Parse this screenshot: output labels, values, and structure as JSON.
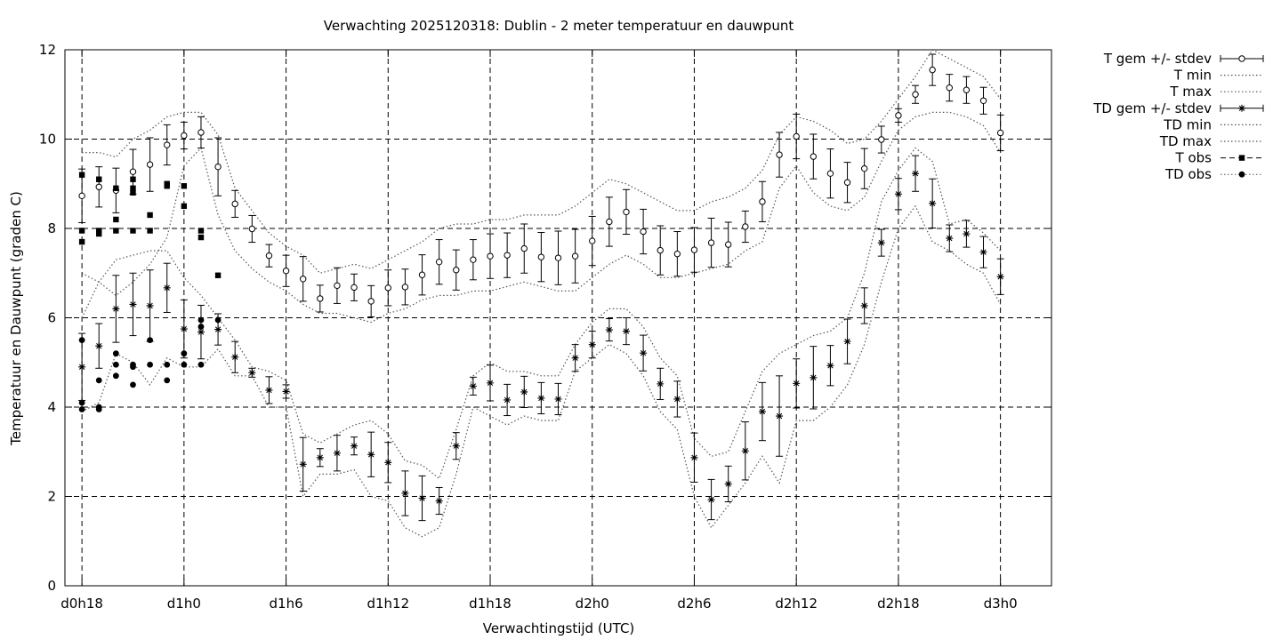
{
  "chart_data": {
    "type": "line",
    "title": "Verwachting 2025120318: Dublin - 2 meter temperatuur en dauwpunt",
    "xlabel": "Verwachtingstijd (UTC)",
    "ylabel": "Temperatuur en Dauwpunt (graden C)",
    "x_unit": "hours since d0h0",
    "xlim": [
      17,
      75
    ],
    "ylim": [
      0,
      12
    ],
    "y_ticks": [
      0,
      2,
      4,
      6,
      8,
      10,
      12
    ],
    "x_ticks": [
      {
        "x": 18,
        "label": "d0h18"
      },
      {
        "x": 24,
        "label": "d1h0"
      },
      {
        "x": 30,
        "label": "d1h6"
      },
      {
        "x": 36,
        "label": "d1h12"
      },
      {
        "x": 42,
        "label": "d1h18"
      },
      {
        "x": 48,
        "label": "d2h0"
      },
      {
        "x": 54,
        "label": "d2h6"
      },
      {
        "x": 60,
        "label": "d2h12"
      },
      {
        "x": 66,
        "label": "d2h18"
      },
      {
        "x": 72,
        "label": "d3h0"
      }
    ],
    "grid": true,
    "legend_position": "right",
    "legend": [
      {
        "key": "t_mean",
        "label": "T gem +/- stdev"
      },
      {
        "key": "t_min",
        "label": "T min"
      },
      {
        "key": "t_max",
        "label": "T max"
      },
      {
        "key": "td_mean",
        "label": "TD gem +/- stdev"
      },
      {
        "key": "td_min",
        "label": "TD min"
      },
      {
        "key": "td_max",
        "label": "TD max"
      },
      {
        "key": "t_obs",
        "label": "T obs"
      },
      {
        "key": "td_obs",
        "label": "TD obs"
      }
    ],
    "x": [
      18,
      19,
      20,
      21,
      22,
      23,
      24,
      25,
      26,
      27,
      28,
      29,
      30,
      31,
      32,
      33,
      34,
      35,
      36,
      37,
      38,
      39,
      40,
      41,
      42,
      43,
      44,
      45,
      46,
      47,
      48,
      49,
      50,
      51,
      52,
      53,
      54,
      55,
      56,
      57,
      58,
      59,
      60,
      61,
      62,
      63,
      64,
      65,
      66,
      67,
      68,
      69,
      70,
      71,
      72
    ],
    "t_mean": [
      8.73,
      8.93,
      8.85,
      9.27,
      9.43,
      9.87,
      10.08,
      10.15,
      9.38,
      8.55,
      7.99,
      7.39,
      7.05,
      6.87,
      6.43,
      6.72,
      6.68,
      6.37,
      6.67,
      6.69,
      6.96,
      7.25,
      7.07,
      7.3,
      7.38,
      7.4,
      7.55,
      7.36,
      7.34,
      7.38,
      7.72,
      8.15,
      8.37,
      7.93,
      7.51,
      7.43,
      7.52,
      7.68,
      7.64,
      8.04,
      8.6,
      9.65,
      10.06,
      9.61,
      9.23,
      9.03,
      9.34,
      9.99,
      10.53,
      11.0,
      11.55,
      11.15,
      11.1,
      10.86,
      10.14
    ],
    "t_sd": [
      0.6,
      0.45,
      0.5,
      0.5,
      0.6,
      0.45,
      0.3,
      0.35,
      0.65,
      0.3,
      0.3,
      0.25,
      0.35,
      0.5,
      0.3,
      0.4,
      0.3,
      0.35,
      0.4,
      0.4,
      0.45,
      0.5,
      0.45,
      0.45,
      0.5,
      0.5,
      0.55,
      0.55,
      0.6,
      0.6,
      0.55,
      0.55,
      0.5,
      0.5,
      0.55,
      0.5,
      0.5,
      0.55,
      0.5,
      0.35,
      0.45,
      0.5,
      0.5,
      0.5,
      0.55,
      0.45,
      0.45,
      0.3,
      0.15,
      0.2,
      0.35,
      0.3,
      0.3,
      0.3,
      0.4
    ],
    "t_min": [
      7.0,
      6.8,
      6.5,
      6.8,
      7.2,
      7.8,
      9.4,
      9.8,
      8.3,
      7.5,
      7.1,
      6.8,
      6.6,
      6.3,
      6.1,
      6.1,
      6.0,
      5.9,
      6.1,
      6.2,
      6.4,
      6.5,
      6.5,
      6.6,
      6.6,
      6.7,
      6.8,
      6.7,
      6.6,
      6.6,
      6.9,
      7.2,
      7.4,
      7.2,
      6.9,
      6.9,
      7.0,
      7.1,
      7.2,
      7.5,
      7.7,
      8.9,
      9.4,
      8.8,
      8.5,
      8.4,
      8.7,
      9.5,
      10.2,
      10.5,
      10.6,
      10.6,
      10.5,
      10.3,
      9.7
    ],
    "t_max": [
      9.7,
      9.7,
      9.6,
      10.0,
      10.2,
      10.5,
      10.6,
      10.6,
      10.1,
      8.9,
      8.4,
      7.9,
      7.6,
      7.4,
      7.0,
      7.1,
      7.2,
      7.1,
      7.3,
      7.5,
      7.7,
      8.0,
      8.1,
      8.1,
      8.2,
      8.2,
      8.3,
      8.3,
      8.3,
      8.5,
      8.8,
      9.1,
      9.0,
      8.8,
      8.6,
      8.4,
      8.4,
      8.6,
      8.7,
      8.9,
      9.3,
      10.1,
      10.5,
      10.4,
      10.2,
      9.9,
      10.0,
      10.4,
      10.9,
      11.4,
      12.0,
      11.8,
      11.6,
      11.4,
      10.9
    ],
    "td_mean": [
      4.9,
      5.37,
      6.2,
      6.3,
      6.27,
      6.67,
      5.75,
      5.68,
      5.74,
      5.12,
      4.77,
      4.38,
      4.35,
      2.72,
      2.87,
      2.97,
      3.13,
      2.94,
      2.76,
      2.07,
      1.96,
      1.9,
      3.13,
      4.47,
      4.54,
      4.16,
      4.34,
      4.2,
      4.18,
      5.1,
      5.4,
      5.73,
      5.7,
      5.21,
      4.52,
      4.18,
      2.87,
      1.93,
      2.28,
      3.02,
      3.9,
      3.8,
      4.53,
      4.66,
      4.93,
      5.47,
      6.27,
      7.68,
      8.77,
      9.23,
      8.56,
      7.78,
      7.88,
      7.47,
      6.92
    ],
    "td_sd": [
      0.75,
      0.5,
      0.75,
      0.7,
      0.8,
      0.55,
      0.65,
      0.6,
      0.35,
      0.35,
      0.1,
      0.3,
      0.15,
      0.6,
      0.2,
      0.4,
      0.2,
      0.5,
      0.45,
      0.5,
      0.5,
      0.3,
      0.3,
      0.2,
      0.4,
      0.35,
      0.35,
      0.35,
      0.35,
      0.3,
      0.3,
      0.25,
      0.3,
      0.4,
      0.35,
      0.4,
      0.55,
      0.45,
      0.4,
      0.65,
      0.65,
      0.9,
      0.55,
      0.7,
      0.45,
      0.5,
      0.4,
      0.3,
      0.35,
      0.4,
      0.55,
      0.3,
      0.3,
      0.35,
      0.4
    ],
    "td_min": [
      3.9,
      4.1,
      5.2,
      5.0,
      4.5,
      5.1,
      4.9,
      4.9,
      5.3,
      4.7,
      4.7,
      4.0,
      4.0,
      2.0,
      2.5,
      2.5,
      2.6,
      2.0,
      1.9,
      1.3,
      1.1,
      1.3,
      2.5,
      4.0,
      3.8,
      3.6,
      3.8,
      3.7,
      3.7,
      4.8,
      5.1,
      5.4,
      5.2,
      4.7,
      3.9,
      3.5,
      2.0,
      1.3,
      1.8,
      2.3,
      2.9,
      2.3,
      3.7,
      3.7,
      4.0,
      4.5,
      5.4,
      6.8,
      8.0,
      8.5,
      7.7,
      7.5,
      7.2,
      7.0,
      6.3
    ],
    "td_max": [
      6.0,
      6.8,
      7.3,
      7.4,
      7.5,
      7.5,
      6.9,
      6.5,
      6.0,
      5.5,
      4.9,
      4.8,
      4.6,
      3.4,
      3.2,
      3.4,
      3.6,
      3.7,
      3.4,
      2.8,
      2.7,
      2.4,
      3.5,
      4.7,
      5.0,
      4.8,
      4.8,
      4.7,
      4.7,
      5.4,
      5.9,
      6.2,
      6.2,
      5.8,
      5.1,
      4.7,
      3.3,
      2.9,
      3.0,
      3.9,
      4.8,
      5.2,
      5.4,
      5.6,
      5.7,
      6.0,
      7.0,
      8.6,
      9.3,
      9.8,
      9.5,
      8.1,
      8.2,
      7.9,
      7.5
    ],
    "t_obs": [
      [
        18,
        9.2
      ],
      [
        18,
        7.95
      ],
      [
        18,
        7.7
      ],
      [
        19,
        9.1
      ],
      [
        19,
        7.95
      ],
      [
        19,
        7.88
      ],
      [
        20,
        8.9
      ],
      [
        20,
        8.2
      ],
      [
        20,
        7.95
      ],
      [
        21,
        9.1
      ],
      [
        21,
        8.9
      ],
      [
        21,
        8.8
      ],
      [
        21,
        7.95
      ],
      [
        22,
        8.3
      ],
      [
        22,
        7.95
      ],
      [
        23,
        9.0
      ],
      [
        23,
        8.95
      ],
      [
        24,
        8.95
      ],
      [
        24,
        8.5
      ],
      [
        25,
        7.95
      ],
      [
        25,
        7.8
      ],
      [
        26,
        6.95
      ]
    ],
    "td_obs": [
      [
        18,
        5.5
      ],
      [
        18,
        4.1
      ],
      [
        18,
        3.95
      ],
      [
        19,
        4.6
      ],
      [
        19,
        4.0
      ],
      [
        19,
        3.95
      ],
      [
        20,
        5.2
      ],
      [
        20,
        4.95
      ],
      [
        20,
        4.7
      ],
      [
        21,
        4.95
      ],
      [
        21,
        4.9
      ],
      [
        21,
        4.5
      ],
      [
        22,
        5.5
      ],
      [
        22,
        4.95
      ],
      [
        23,
        4.95
      ],
      [
        23,
        4.6
      ],
      [
        24,
        5.2
      ],
      [
        24,
        4.95
      ],
      [
        25,
        5.95
      ],
      [
        25,
        5.8
      ],
      [
        25,
        4.95
      ],
      [
        26,
        5.95
      ]
    ]
  }
}
